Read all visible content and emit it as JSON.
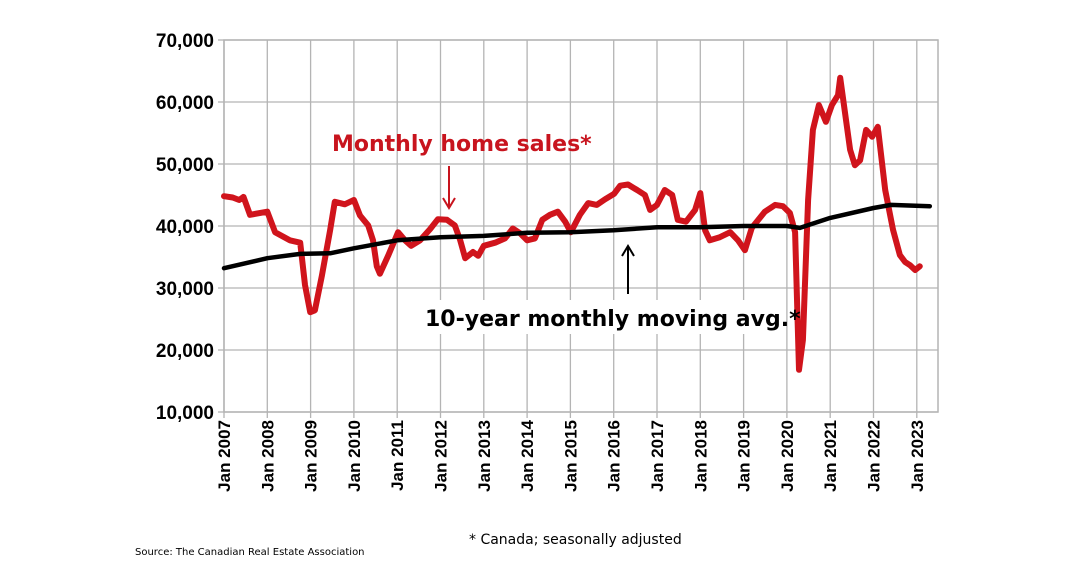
{
  "chart_data": {
    "type": "line",
    "title": "",
    "xlabel": "",
    "ylabel": "",
    "xlim": [
      2007,
      2023.5
    ],
    "ylim": [
      10000,
      70000
    ],
    "grid": true,
    "yticks": [
      10000,
      20000,
      30000,
      40000,
      50000,
      60000,
      70000
    ],
    "ytick_labels": [
      "10,000",
      "20,000",
      "30,000",
      "40,000",
      "50,000",
      "60,000",
      "70,000"
    ],
    "xticks": [
      2007,
      2008,
      2009,
      2010,
      2011,
      2012,
      2013,
      2014,
      2015,
      2016,
      2017,
      2018,
      2019,
      2020,
      2021,
      2022,
      2023
    ],
    "xtick_labels": [
      "Jan 2007",
      "Jan 2008",
      "Jan 2009",
      "Jan 2010",
      "Jan 2011",
      "Jan 2012",
      "Jan 2013",
      "Jan 2014",
      "Jan 2015",
      "Jan 2016",
      "Jan 2017",
      "Jan 2018",
      "Jan 2019",
      "Jan 2020",
      "Jan 2021",
      "Jan 2022",
      "Jan 2023"
    ],
    "colors": {
      "sales": "#d0141c",
      "average": "#000000",
      "grid": "#b4b4b4"
    },
    "series": [
      {
        "name": "Monthly home sales*",
        "x": [
          2007.0,
          2007.2,
          2007.35,
          2007.45,
          2007.6,
          2008.0,
          2008.18,
          2008.52,
          2008.76,
          2008.87,
          2008.99,
          2009.1,
          2009.26,
          2009.45,
          2009.56,
          2009.79,
          2010.0,
          2010.14,
          2010.33,
          2010.44,
          2010.53,
          2010.6,
          2010.79,
          2011.02,
          2011.18,
          2011.32,
          2011.53,
          2011.76,
          2011.94,
          2012.15,
          2012.33,
          2012.45,
          2012.57,
          2012.75,
          2012.87,
          2013.0,
          2013.26,
          2013.49,
          2013.67,
          2013.84,
          2014.0,
          2014.18,
          2014.35,
          2014.53,
          2014.71,
          2014.88,
          2015.01,
          2015.22,
          2015.41,
          2015.61,
          2015.8,
          2016.01,
          2016.15,
          2016.33,
          2016.54,
          2016.72,
          2016.84,
          2017.0,
          2017.18,
          2017.35,
          2017.48,
          2017.67,
          2017.88,
          2018.0,
          2018.11,
          2018.22,
          2018.45,
          2018.69,
          2018.87,
          2019.03,
          2019.19,
          2019.49,
          2019.73,
          2019.91,
          2020.07,
          2020.19,
          2020.28,
          2020.37,
          2020.49,
          2020.6,
          2020.74,
          2020.9,
          2021.04,
          2021.18,
          2021.23,
          2021.46,
          2021.57,
          2021.69,
          2021.83,
          2021.97,
          2022.1,
          2022.27,
          2022.45,
          2022.61,
          2022.73,
          2022.84,
          2022.96,
          2023.07
        ],
        "values": [
          44800,
          44600,
          44200,
          44700,
          41800,
          42300,
          39000,
          37700,
          37300,
          30500,
          26100,
          26400,
          32000,
          39300,
          43900,
          43500,
          44200,
          41700,
          40100,
          37700,
          33500,
          32300,
          35200,
          39000,
          37700,
          36800,
          37700,
          39500,
          41100,
          41000,
          40100,
          37800,
          34800,
          35800,
          35200,
          36800,
          37300,
          38000,
          39600,
          38800,
          37700,
          38000,
          41000,
          41800,
          42300,
          40700,
          39000,
          41800,
          43700,
          43400,
          44300,
          45200,
          46500,
          46700,
          45800,
          45000,
          42600,
          43400,
          45800,
          45000,
          41000,
          40700,
          42600,
          45300,
          39300,
          37700,
          38200,
          39000,
          37700,
          36100,
          39700,
          42300,
          43400,
          43200,
          42100,
          39000,
          16800,
          21600,
          44200,
          55500,
          59500,
          56800,
          59500,
          61100,
          63900,
          52300,
          49800,
          50600,
          55500,
          54400,
          56000,
          45800,
          39400,
          35300,
          34200,
          33700,
          32900,
          33500
        ]
      },
      {
        "name": "10-year monthly moving avg.*",
        "x": [
          2007.0,
          2008.0,
          2008.76,
          2009.45,
          2010.0,
          2011.0,
          2012.0,
          2013.0,
          2014.0,
          2015.0,
          2016.0,
          2017.0,
          2018.0,
          2019.0,
          2020.0,
          2020.3,
          2021.0,
          2022.0,
          2022.4,
          2023.3
        ],
        "values": [
          33200,
          34800,
          35500,
          35600,
          36400,
          37700,
          38200,
          38400,
          38900,
          39000,
          39300,
          39800,
          39800,
          40000,
          40000,
          39700,
          41300,
          42900,
          43400,
          43200
        ]
      }
    ],
    "annotations": {
      "sales_label": "Monthly home sales*",
      "average_label": "10-year monthly moving avg.*"
    }
  },
  "footnote": "* Canada; seasonally adjusted",
  "source": "Source: The Canadian Real Estate Association"
}
